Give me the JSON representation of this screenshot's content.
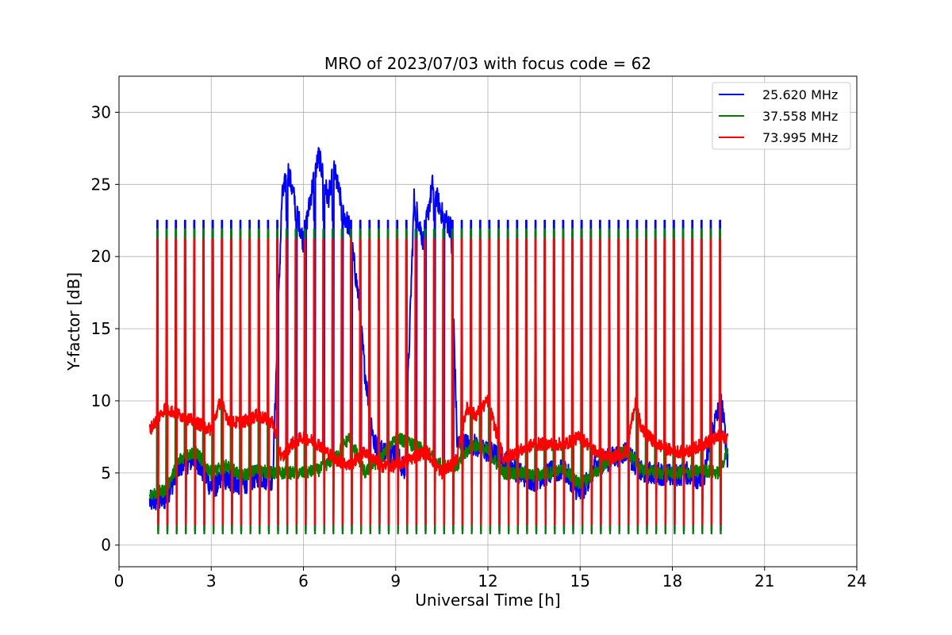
{
  "chart_data": {
    "type": "line",
    "title": "MRO of 2023/07/03 with focus code = 62",
    "xlabel": "Universal Time [h]",
    "ylabel": "Y-factor [dB]",
    "xlim": [
      0,
      24
    ],
    "ylim": [
      -1.5,
      32.5
    ],
    "xticks": [
      0,
      3,
      6,
      9,
      12,
      15,
      18,
      21,
      24
    ],
    "yticks": [
      0,
      5,
      10,
      15,
      20,
      25,
      30
    ],
    "grid": true,
    "legend_position": "top-right",
    "calibration_pulses": {
      "first_hour": 1.25,
      "last_hour": 19.75,
      "period_hours": 0.3,
      "top_values": {
        "25.620 MHz": 22.5,
        "37.558 MHz": 21.9,
        "73.995 MHz": 21.2
      },
      "bottom_values": {
        "25.620 MHz": 1.0,
        "37.558 MHz": 0.8,
        "73.995 MHz": 1.4
      }
    },
    "series": [
      {
        "name": "25.620 MHz",
        "color": "#0000ff",
        "x": [
          1.0,
          1.5,
          2.0,
          2.5,
          3.0,
          3.5,
          4.0,
          4.5,
          5.0,
          5.3,
          5.5,
          5.8,
          6.0,
          6.3,
          6.5,
          6.8,
          7.0,
          7.3,
          7.5,
          7.8,
          8.0,
          8.3,
          8.6,
          9.0,
          9.3,
          9.6,
          9.9,
          10.2,
          10.5,
          10.8,
          11.0,
          11.5,
          12.0,
          12.5,
          13.0,
          13.5,
          14.0,
          14.5,
          15.0,
          15.5,
          16.0,
          16.5,
          17.0,
          17.5,
          18.0,
          18.5,
          19.0,
          19.3,
          19.6,
          19.8
        ],
        "values": [
          3.0,
          3.2,
          5.5,
          6.0,
          4.0,
          4.5,
          4.2,
          4.8,
          4.5,
          24.0,
          26.0,
          23.0,
          21.0,
          25.0,
          27.0,
          24.0,
          26.0,
          23.0,
          22.0,
          17.0,
          12.0,
          7.0,
          6.5,
          6.5,
          5.0,
          24.0,
          21.0,
          25.0,
          23.0,
          22.0,
          7.0,
          7.0,
          6.5,
          6.0,
          5.0,
          4.5,
          5.0,
          5.2,
          3.5,
          5.5,
          6.0,
          6.5,
          5.0,
          5.0,
          4.8,
          5.0,
          4.5,
          8.0,
          10.0,
          6.0
        ]
      },
      {
        "name": "37.558 MHz",
        "color": "#008000",
        "x": [
          1.0,
          1.5,
          2.0,
          2.5,
          3.0,
          3.5,
          4.0,
          4.5,
          5.0,
          5.5,
          6.0,
          6.5,
          7.0,
          7.5,
          8.0,
          8.5,
          9.0,
          9.5,
          10.0,
          10.5,
          11.0,
          11.5,
          12.0,
          12.5,
          13.0,
          13.5,
          14.0,
          14.5,
          15.0,
          15.5,
          16.0,
          16.5,
          17.0,
          17.5,
          18.0,
          18.5,
          19.0,
          19.5,
          19.8
        ],
        "values": [
          3.5,
          3.8,
          6.0,
          6.5,
          5.0,
          5.5,
          4.8,
          5.2,
          5.0,
          5.0,
          5.0,
          5.2,
          6.0,
          7.5,
          5.0,
          6.0,
          7.5,
          7.0,
          6.5,
          5.5,
          5.5,
          7.0,
          6.5,
          5.0,
          5.0,
          4.8,
          5.0,
          5.2,
          4.2,
          5.0,
          6.0,
          6.5,
          5.2,
          5.0,
          5.0,
          5.0,
          5.2,
          5.0,
          6.5
        ]
      },
      {
        "name": "73.995 MHz",
        "color": "#ff0000",
        "x": [
          1.0,
          1.5,
          2.0,
          2.5,
          3.0,
          3.3,
          3.6,
          4.0,
          4.5,
          5.0,
          5.3,
          5.6,
          6.0,
          6.5,
          7.0,
          7.5,
          8.0,
          8.5,
          9.0,
          9.5,
          10.0,
          10.5,
          11.0,
          11.3,
          11.6,
          12.0,
          12.5,
          13.0,
          13.5,
          14.0,
          14.5,
          15.0,
          15.5,
          16.0,
          16.5,
          16.8,
          17.0,
          17.5,
          18.0,
          18.5,
          19.0,
          19.5,
          19.8
        ],
        "values": [
          8.0,
          9.5,
          9.0,
          8.5,
          8.0,
          10.0,
          8.5,
          8.5,
          9.0,
          8.5,
          6.0,
          7.0,
          7.5,
          7.0,
          6.0,
          5.5,
          6.5,
          5.5,
          5.5,
          6.0,
          6.5,
          5.0,
          6.0,
          9.5,
          9.0,
          10.0,
          6.0,
          6.5,
          7.0,
          7.0,
          7.0,
          7.5,
          6.5,
          6.0,
          6.5,
          10.0,
          8.0,
          7.0,
          6.5,
          6.5,
          7.0,
          7.5,
          7.5
        ]
      }
    ]
  }
}
